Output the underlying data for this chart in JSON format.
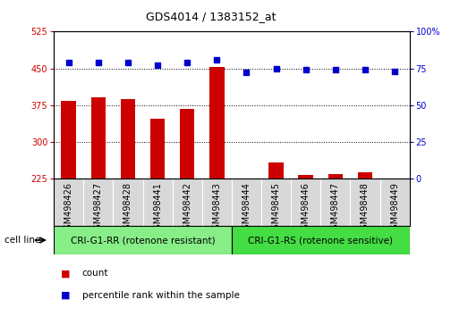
{
  "title": "GDS4014 / 1383152_at",
  "categories": [
    "GSM498426",
    "GSM498427",
    "GSM498428",
    "GSM498441",
    "GSM498442",
    "GSM498443",
    "GSM498444",
    "GSM498445",
    "GSM498446",
    "GSM498447",
    "GSM498448",
    "GSM498449"
  ],
  "bar_values": [
    383,
    390,
    387,
    348,
    368,
    452,
    225,
    258,
    232,
    235,
    238,
    222
  ],
  "dot_values": [
    79,
    79,
    79,
    77,
    79,
    81,
    72,
    75,
    74,
    74,
    74,
    73
  ],
  "bar_color": "#cc0000",
  "dot_color": "#0000cc",
  "ylim_left": [
    225,
    525
  ],
  "ylim_right": [
    0,
    100
  ],
  "yticks_left": [
    225,
    300,
    375,
    450,
    525
  ],
  "yticks_right": [
    0,
    25,
    50,
    75,
    100
  ],
  "group1_label": "CRI-G1-RR (rotenone resistant)",
  "group2_label": "CRI-G1-RS (rotenone sensitive)",
  "group1_count": 6,
  "group2_count": 6,
  "cell_line_label": "cell line",
  "legend_bar_label": "count",
  "legend_dot_label": "percentile rank within the sample",
  "bg_plot": "#ffffff",
  "bg_xlab": "#d8d8d8",
  "bg_group1": "#88ee88",
  "bg_group2": "#44dd44",
  "bar_width": 0.5,
  "title_fontsize": 9,
  "tick_fontsize": 7,
  "label_fontsize": 7,
  "legend_fontsize": 7.5
}
